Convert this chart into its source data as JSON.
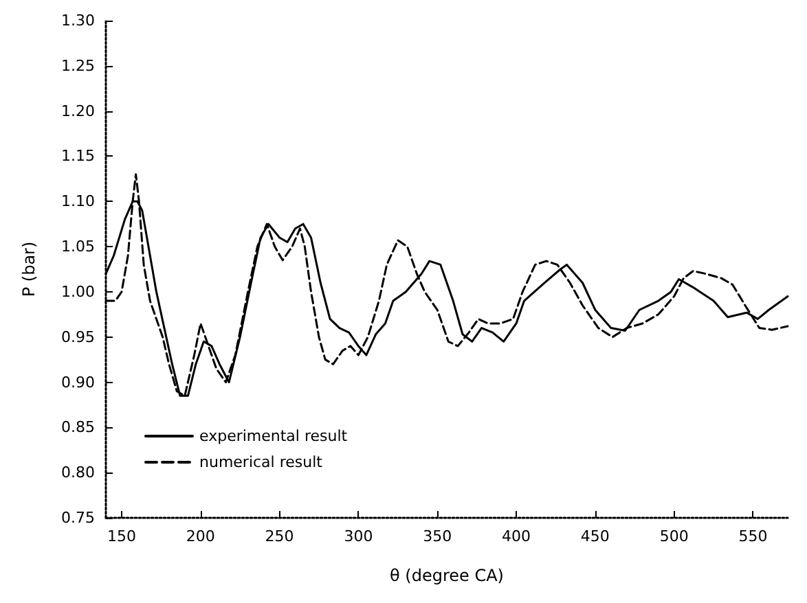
{
  "chart_data": {
    "type": "line",
    "xlabel": "θ (degree CA)",
    "ylabel": "P (bar)",
    "xlim": [
      140,
      572
    ],
    "xticks": [
      150,
      200,
      250,
      300,
      350,
      400,
      450,
      500,
      550
    ],
    "ylim": [
      0.75,
      1.3
    ],
    "yticks": [
      {
        "value": 0.75,
        "label": "0.75"
      },
      {
        "value": 0.8,
        "label": "0.80"
      },
      {
        "value": 0.85,
        "label": "0.85"
      },
      {
        "value": 0.9,
        "label": "0.90"
      },
      {
        "value": 0.95,
        "label": "0.95"
      },
      {
        "value": 1.0,
        "label": "1.00"
      },
      {
        "value": 1.05,
        "label": "1.05"
      },
      {
        "value": 1.1,
        "label": "1.10"
      },
      {
        "value": 1.15,
        "label": "1.15"
      },
      {
        "value": 1.2,
        "label": "1.20"
      },
      {
        "value": 1.25,
        "label": "1.25"
      },
      {
        "value": 1.3,
        "label": "1.30"
      }
    ],
    "grid": false,
    "legend": "bottom left",
    "marker": "none",
    "series": [
      {
        "name": "experimental result",
        "color": "#000000",
        "line_style": "solid",
        "x": [
          140,
          145,
          152,
          157,
          160,
          163,
          167,
          172,
          177,
          182,
          187,
          192,
          197,
          202,
          207,
          212,
          218,
          225,
          232,
          238,
          243,
          250,
          255,
          260,
          265,
          270,
          276,
          282,
          288,
          294,
          300,
          305,
          311,
          317,
          322,
          330,
          340,
          345,
          352,
          360,
          366,
          372,
          378,
          385,
          392,
          400,
          405,
          418,
          428,
          432,
          442,
          450,
          460,
          469,
          478,
          490,
          498,
          503,
          512,
          525,
          534,
          546,
          553,
          560,
          572
        ],
        "values": [
          1.02,
          1.04,
          1.08,
          1.1,
          1.1,
          1.09,
          1.05,
          1.0,
          0.96,
          0.92,
          0.885,
          0.885,
          0.92,
          0.945,
          0.94,
          0.92,
          0.9,
          0.95,
          1.01,
          1.06,
          1.075,
          1.06,
          1.055,
          1.07,
          1.075,
          1.06,
          1.01,
          0.97,
          0.96,
          0.955,
          0.94,
          0.93,
          0.953,
          0.965,
          0.99,
          1.0,
          1.02,
          1.034,
          1.03,
          0.99,
          0.953,
          0.945,
          0.96,
          0.955,
          0.945,
          0.965,
          0.99,
          1.01,
          1.025,
          1.03,
          1.01,
          0.98,
          0.96,
          0.957,
          0.98,
          0.99,
          1.0,
          1.014,
          1.005,
          0.99,
          0.972,
          0.977,
          0.97,
          0.98,
          0.995
        ]
      },
      {
        "name": "numerical result",
        "color": "#000000",
        "line_style": "dashed",
        "x": [
          140,
          146,
          150,
          154,
          157,
          159,
          161,
          164,
          168,
          172,
          176,
          180,
          185,
          190,
          196,
          200,
          205,
          210,
          216,
          222,
          230,
          236,
          242,
          247,
          252,
          258,
          263,
          266,
          270,
          275,
          279,
          284,
          290,
          295,
          300,
          306,
          313,
          318,
          325,
          331,
          337,
          342,
          350,
          357,
          363,
          370,
          376,
          382,
          390,
          398,
          404,
          412,
          419,
          426,
          434,
          442,
          452,
          461,
          470,
          480,
          490,
          500,
          506,
          512,
          520,
          530,
          537,
          545,
          554,
          562,
          572
        ],
        "values": [
          0.99,
          0.99,
          1.0,
          1.04,
          1.1,
          1.13,
          1.1,
          1.03,
          0.99,
          0.97,
          0.95,
          0.92,
          0.89,
          0.885,
          0.93,
          0.965,
          0.94,
          0.915,
          0.9,
          0.93,
          1.0,
          1.05,
          1.075,
          1.05,
          1.035,
          1.05,
          1.07,
          1.05,
          1.0,
          0.95,
          0.925,
          0.92,
          0.935,
          0.94,
          0.93,
          0.95,
          0.99,
          1.03,
          1.057,
          1.05,
          1.02,
          1.0,
          0.98,
          0.945,
          0.94,
          0.955,
          0.97,
          0.965,
          0.965,
          0.97,
          1.0,
          1.03,
          1.034,
          1.03,
          1.01,
          0.985,
          0.96,
          0.95,
          0.96,
          0.965,
          0.975,
          0.995,
          1.015,
          1.023,
          1.02,
          1.015,
          1.008,
          0.985,
          0.96,
          0.958,
          0.962
        ]
      }
    ]
  }
}
